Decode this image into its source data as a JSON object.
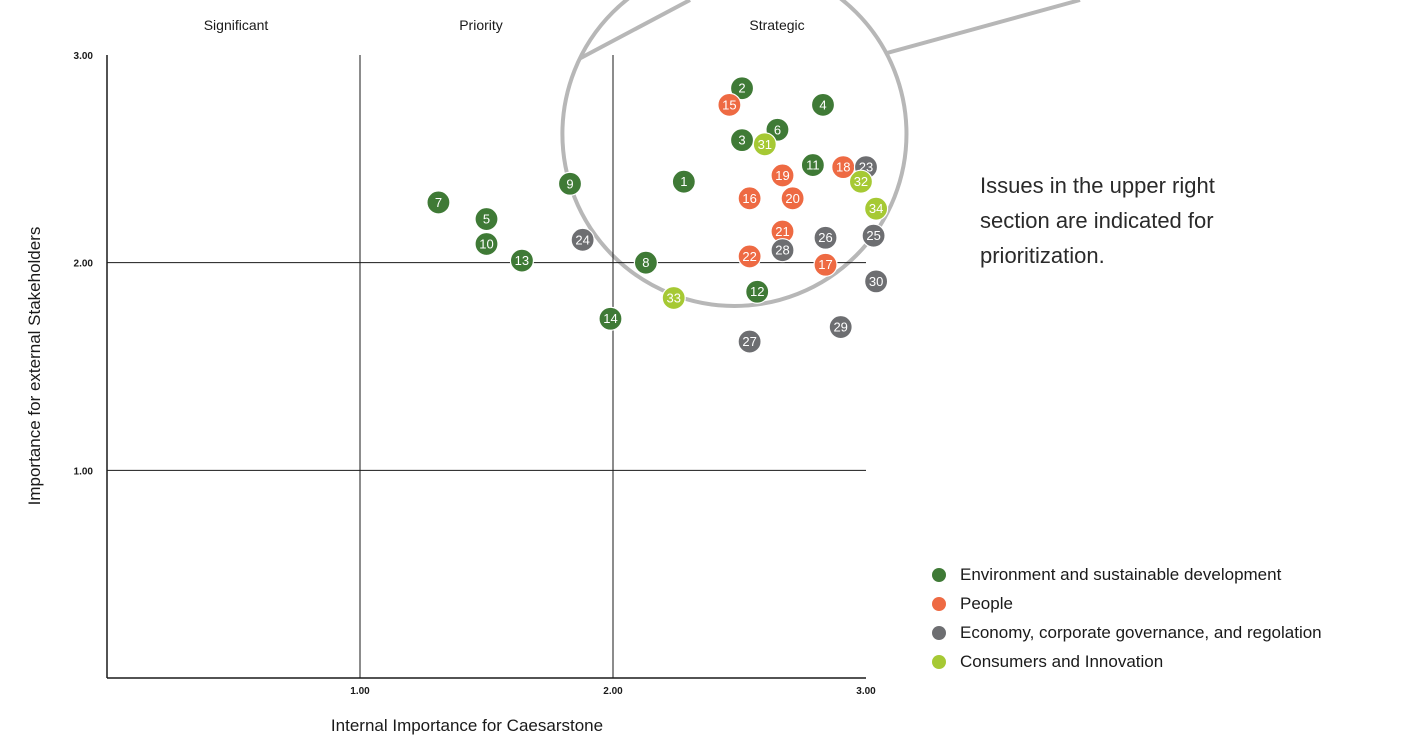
{
  "note": "Issues in the upper right section are indicated for prioritization.",
  "chart_data": {
    "type": "scatter",
    "xlabel": "Internal Importance for Caesarstone",
    "ylabel": "Importance for external Stakeholders",
    "xlim": [
      0,
      3
    ],
    "ylim": [
      0,
      3
    ],
    "xticks": [
      {
        "value": 1,
        "label": "1.00"
      },
      {
        "value": 2,
        "label": "2.00"
      },
      {
        "value": 3,
        "label": "3.00"
      }
    ],
    "yticks": [
      {
        "value": 1,
        "label": "1.00"
      },
      {
        "value": 2,
        "label": "2.00"
      },
      {
        "value": 3,
        "label": "3.00"
      }
    ],
    "gridlines": {
      "x": [
        1,
        2
      ],
      "y": [
        1,
        2
      ]
    },
    "quadrant_labels": [
      "Significant",
      "Priority",
      "Strategic"
    ],
    "highlight_circle": {
      "center": [
        2.48,
        2.62
      ],
      "radius_x": 0.68
    },
    "colors": {
      "env": "#3f7a36",
      "people": "#ee6a43",
      "econ": "#6d6e71",
      "consumers": "#a6c934",
      "highlight": "#b7b7b7"
    },
    "series": [
      {
        "name": "Environment and sustainable development",
        "key": "env",
        "points": [
          {
            "label": "1",
            "x": 2.28,
            "y": 2.39
          },
          {
            "label": "2",
            "x": 2.51,
            "y": 2.84
          },
          {
            "label": "3",
            "x": 2.51,
            "y": 2.59
          },
          {
            "label": "4",
            "x": 2.83,
            "y": 2.76
          },
          {
            "label": "5",
            "x": 1.5,
            "y": 2.21
          },
          {
            "label": "6",
            "x": 2.65,
            "y": 2.64
          },
          {
            "label": "7",
            "x": 1.31,
            "y": 2.29
          },
          {
            "label": "8",
            "x": 2.13,
            "y": 2.0
          },
          {
            "label": "9",
            "x": 1.83,
            "y": 2.38
          },
          {
            "label": "10",
            "x": 1.5,
            "y": 2.09
          },
          {
            "label": "11",
            "x": 2.79,
            "y": 2.47
          },
          {
            "label": "12",
            "x": 2.57,
            "y": 1.86
          },
          {
            "label": "13",
            "x": 1.64,
            "y": 2.01
          },
          {
            "label": "14",
            "x": 1.99,
            "y": 1.73
          }
        ]
      },
      {
        "name": "People",
        "key": "people",
        "points": [
          {
            "label": "15",
            "x": 2.46,
            "y": 2.76
          },
          {
            "label": "16",
            "x": 2.54,
            "y": 2.31
          },
          {
            "label": "17",
            "x": 2.84,
            "y": 1.99
          },
          {
            "label": "18",
            "x": 2.91,
            "y": 2.46
          },
          {
            "label": "19",
            "x": 2.67,
            "y": 2.42
          },
          {
            "label": "20",
            "x": 2.71,
            "y": 2.31
          },
          {
            "label": "21",
            "x": 2.67,
            "y": 2.15
          },
          {
            "label": "22",
            "x": 2.54,
            "y": 2.03
          }
        ]
      },
      {
        "name": "Economy, corporate governance, and regolation",
        "key": "econ",
        "points": [
          {
            "label": "23",
            "x": 3.0,
            "y": 2.46
          },
          {
            "label": "24",
            "x": 1.88,
            "y": 2.11
          },
          {
            "label": "25",
            "x": 3.03,
            "y": 2.13
          },
          {
            "label": "26",
            "x": 2.84,
            "y": 2.12
          },
          {
            "label": "27",
            "x": 2.54,
            "y": 1.62
          },
          {
            "label": "28",
            "x": 2.67,
            "y": 2.06
          },
          {
            "label": "29",
            "x": 2.9,
            "y": 1.69
          },
          {
            "label": "30",
            "x": 3.04,
            "y": 1.91
          }
        ]
      },
      {
        "name": "Consumers and Innovation",
        "key": "consumers",
        "points": [
          {
            "label": "31",
            "x": 2.6,
            "y": 2.57
          },
          {
            "label": "32",
            "x": 2.98,
            "y": 2.39
          },
          {
            "label": "33",
            "x": 2.24,
            "y": 1.83
          },
          {
            "label": "34",
            "x": 3.04,
            "y": 2.26
          }
        ]
      }
    ]
  }
}
